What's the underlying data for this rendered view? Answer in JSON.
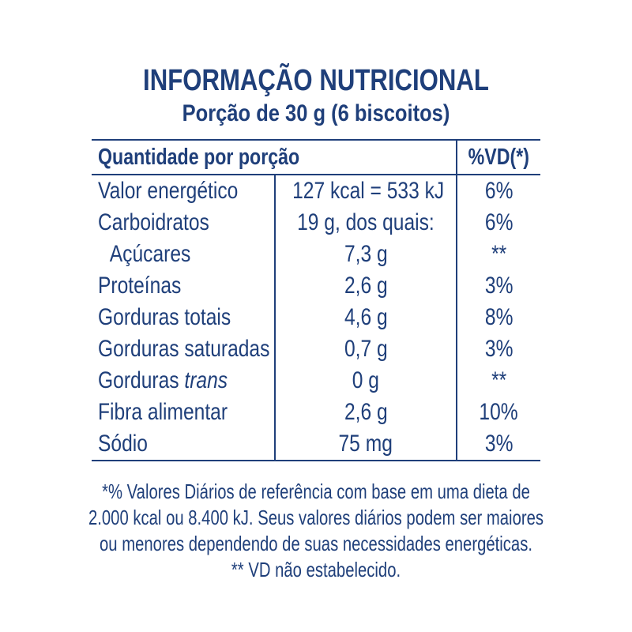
{
  "title": "INFORMAÇÃO NUTRICIONAL",
  "subtitle": "Porção de 30 g (6 biscoitos)",
  "table": {
    "header_left": "Quantidade por porção",
    "header_right": "%VD(*)",
    "rows": [
      {
        "name": "Valor energético",
        "amount": "127 kcal = 533 kJ",
        "vd": "6%"
      },
      {
        "name": "Carboidratos",
        "amount": "19 g, dos quais:",
        "vd": "6%"
      },
      {
        "name": "Açúcares",
        "amount": "7,3 g",
        "vd": "**"
      },
      {
        "name": "Proteínas",
        "amount": "2,6 g",
        "vd": "3%"
      },
      {
        "name": "Gorduras totais",
        "amount": "4,6 g",
        "vd": "8%"
      },
      {
        "name": "Gorduras saturadas",
        "amount": "0,7 g",
        "vd": "3%"
      },
      {
        "name_prefix": "Gorduras ",
        "name_italic": "trans",
        "amount": "0 g",
        "vd": "**"
      },
      {
        "name": "Fibra alimentar",
        "amount": "2,6 g",
        "vd": "10%"
      },
      {
        "name": "Sódio",
        "amount": "75 mg",
        "vd": "3%"
      }
    ]
  },
  "footnote": {
    "line1": "*% Valores Diários de referência com base em uma dieta de",
    "line2": "2.000 kcal ou 8.400 kJ. Seus valores diários podem ser maiores",
    "line3": "ou menores dependendo de suas necessidades energéticas.",
    "line4": "** VD não estabelecido."
  },
  "colors": {
    "text": "#1f3f7a",
    "background": "#ffffff"
  }
}
